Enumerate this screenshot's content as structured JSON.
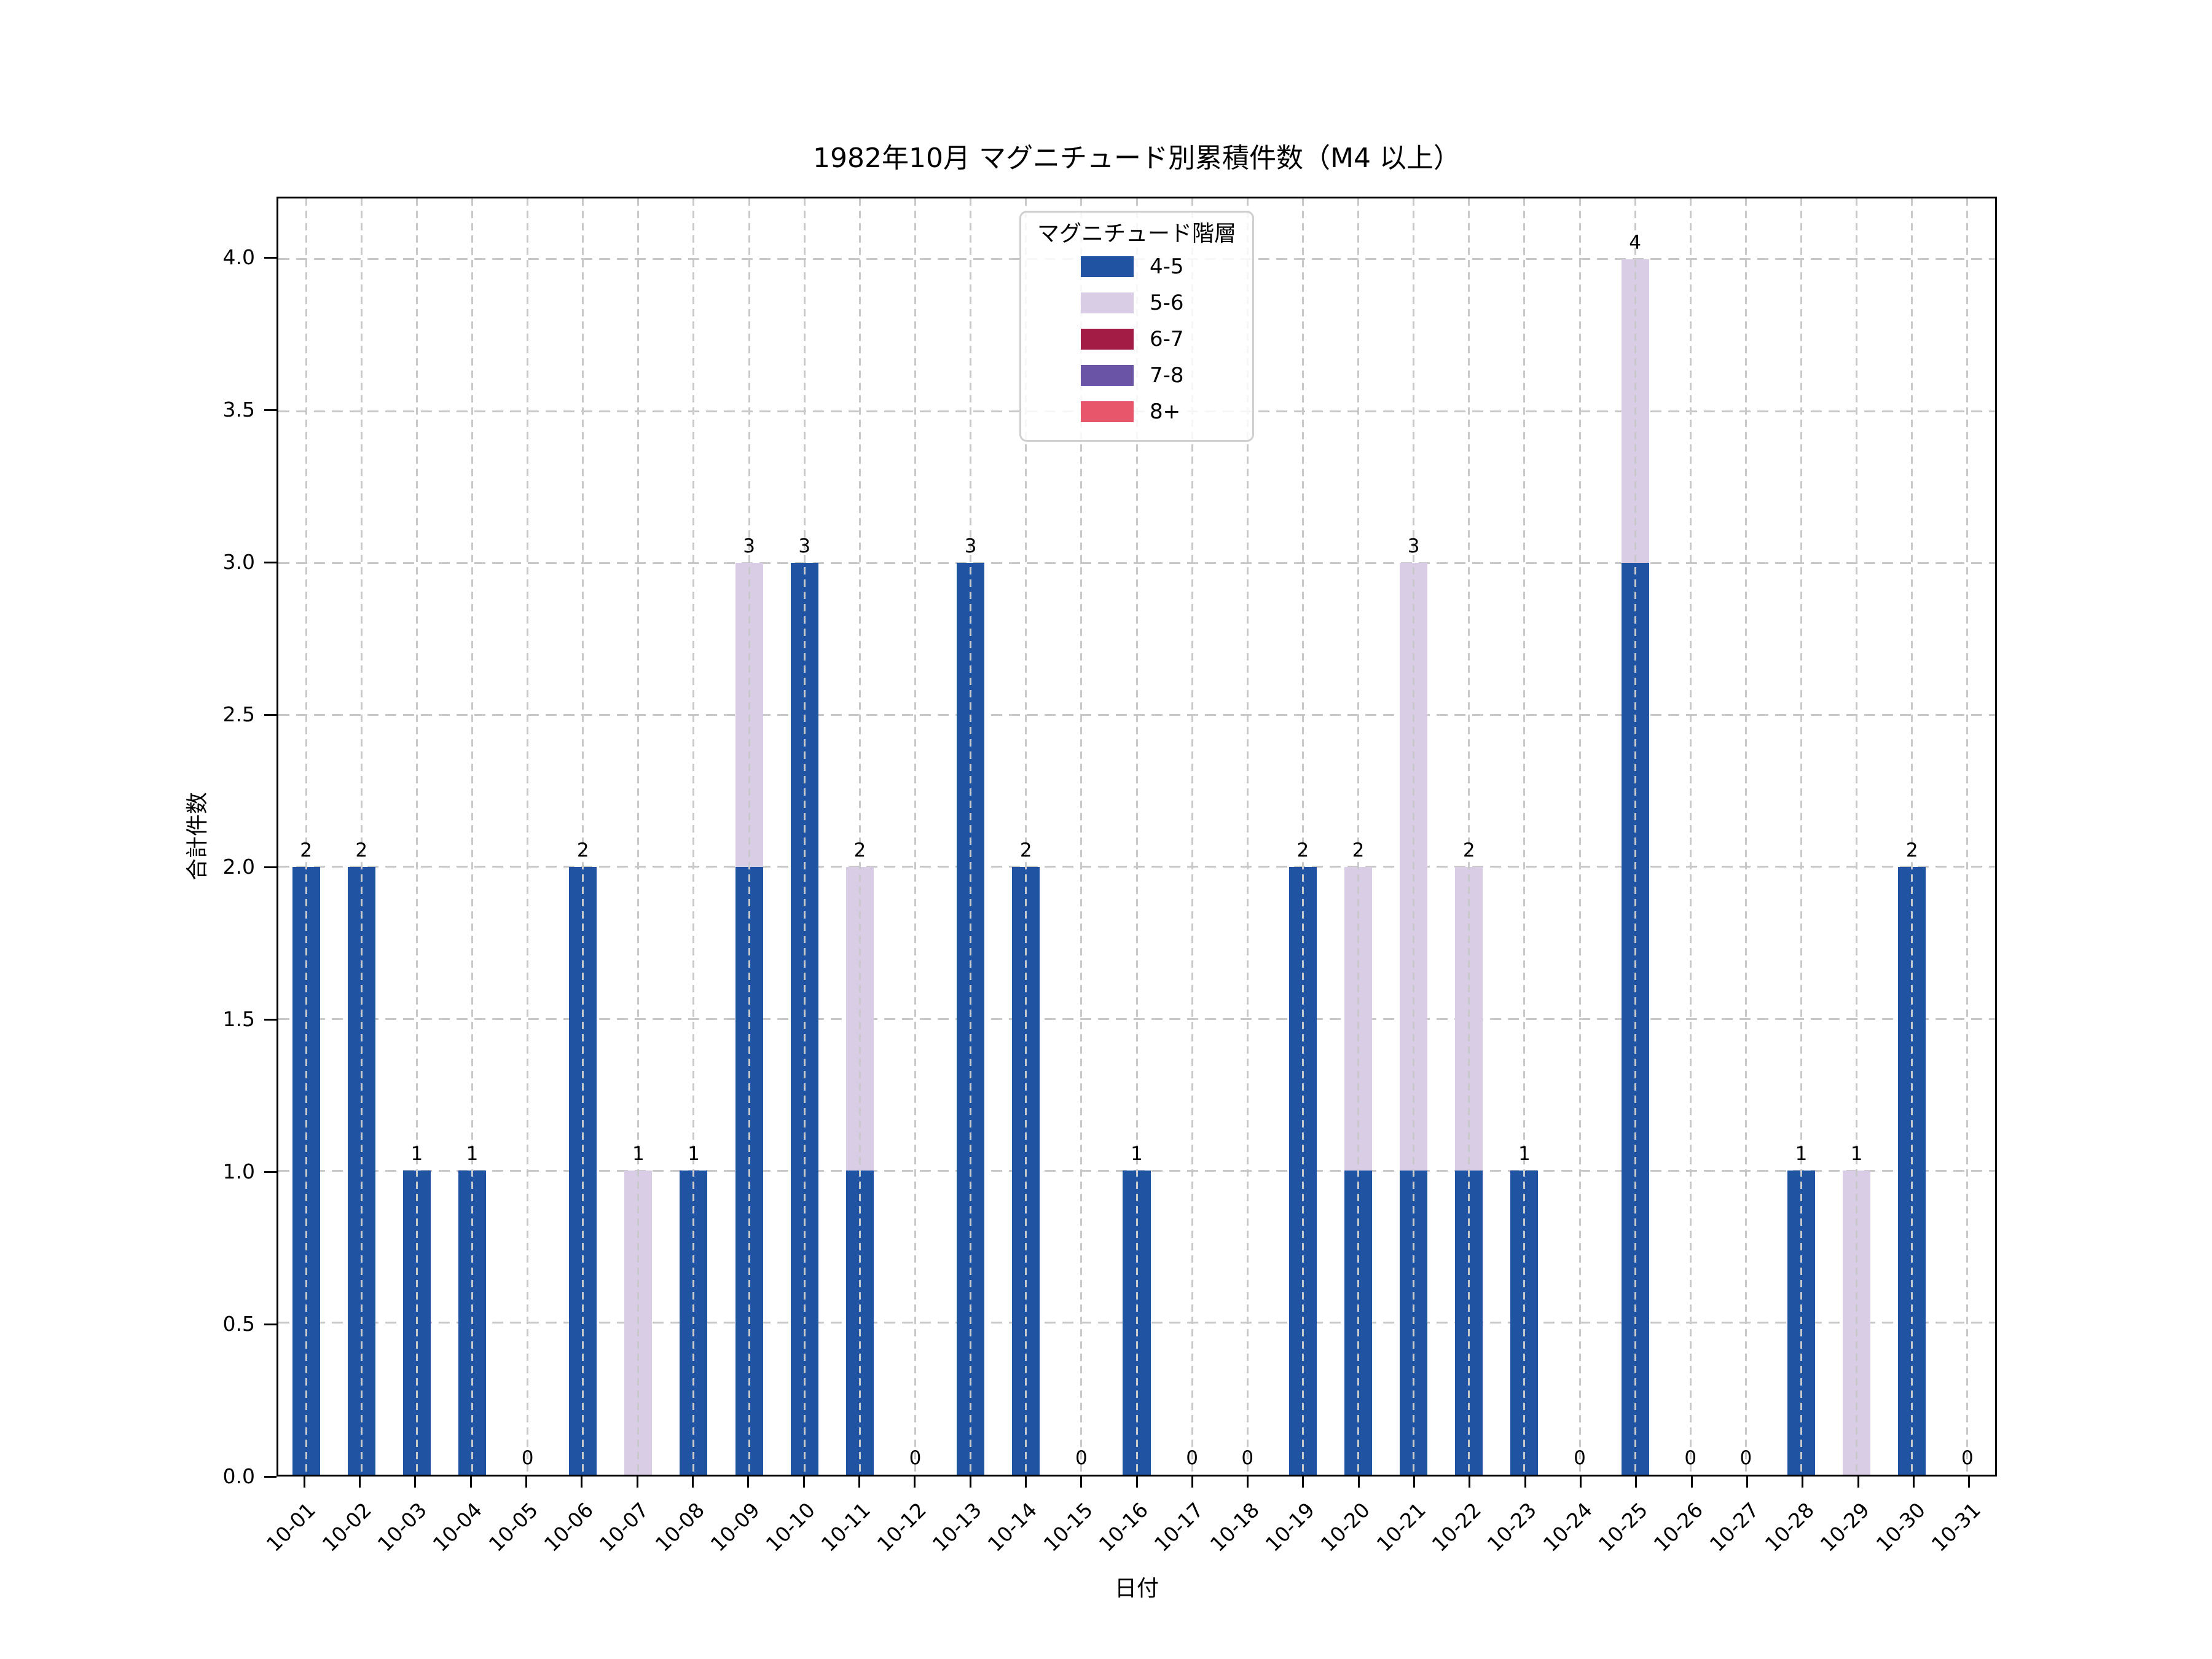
{
  "figure": {
    "title": "1982年10月 マグニチュード別累積件数（M4 以上）"
  },
  "axes": {
    "x_label": "日付",
    "y_label": "合計件数",
    "y_tick_labels": [
      "0.0",
      "0.5",
      "1.0",
      "1.5",
      "2.0",
      "2.5",
      "3.0",
      "3.5",
      "4.0"
    ],
    "x_tick_labels": [
      "10-01",
      "10-02",
      "10-03",
      "10-04",
      "10-05",
      "10-06",
      "10-07",
      "10-08",
      "10-09",
      "10-10",
      "10-11",
      "10-12",
      "10-13",
      "10-14",
      "10-15",
      "10-16",
      "10-17",
      "10-18",
      "10-19",
      "10-20",
      "10-21",
      "10-22",
      "10-23",
      "10-24",
      "10-25",
      "10-26",
      "10-27",
      "10-28",
      "10-29",
      "10-30",
      "10-31"
    ]
  },
  "legend": {
    "title": "マグニチュード階層",
    "entries": [
      {
        "label": "4-5",
        "color": "#2153a3"
      },
      {
        "label": "5-6",
        "color": "#d8cde4"
      },
      {
        "label": "6-7",
        "color": "#a21c45"
      },
      {
        "label": "7-8",
        "color": "#6a54a5"
      },
      {
        "label": "8+",
        "color": "#e8566b"
      }
    ]
  },
  "colors": {
    "background": "#ffffff",
    "grid": "#c8c8c8",
    "axis": "#000000",
    "legend_border": "#cfcfcf"
  },
  "chart_data": {
    "type": "bar",
    "stacked": true,
    "title": "1982年10月 マグニチュード別累積件数（M4 以上）",
    "xlabel": "日付",
    "ylabel": "合計件数",
    "legend_title": "マグニチュード階層",
    "legend_position": "upper center",
    "grid": true,
    "ylim": [
      0,
      4.2
    ],
    "y_ticks": [
      0.0,
      0.5,
      1.0,
      1.5,
      2.0,
      2.5,
      3.0,
      3.5,
      4.0
    ],
    "categories": [
      "10-01",
      "10-02",
      "10-03",
      "10-04",
      "10-05",
      "10-06",
      "10-07",
      "10-08",
      "10-09",
      "10-10",
      "10-11",
      "10-12",
      "10-13",
      "10-14",
      "10-15",
      "10-16",
      "10-17",
      "10-18",
      "10-19",
      "10-20",
      "10-21",
      "10-22",
      "10-23",
      "10-24",
      "10-25",
      "10-26",
      "10-27",
      "10-28",
      "10-29",
      "10-30",
      "10-31"
    ],
    "series": [
      {
        "name": "4-5",
        "color": "#2153a3",
        "values": [
          2,
          2,
          1,
          1,
          0,
          2,
          0,
          1,
          2,
          3,
          1,
          0,
          3,
          2,
          0,
          1,
          0,
          0,
          2,
          1,
          1,
          1,
          1,
          0,
          3,
          0,
          0,
          1,
          0,
          2,
          0
        ]
      },
      {
        "name": "5-6",
        "color": "#d8cde4",
        "values": [
          0,
          0,
          0,
          0,
          0,
          0,
          1,
          0,
          1,
          0,
          1,
          0,
          0,
          0,
          0,
          0,
          0,
          0,
          0,
          1,
          2,
          1,
          0,
          0,
          1,
          0,
          0,
          0,
          1,
          0,
          0
        ]
      },
      {
        "name": "6-7",
        "color": "#a21c45",
        "values": [
          0,
          0,
          0,
          0,
          0,
          0,
          0,
          0,
          0,
          0,
          0,
          0,
          0,
          0,
          0,
          0,
          0,
          0,
          0,
          0,
          0,
          0,
          0,
          0,
          0,
          0,
          0,
          0,
          0,
          0,
          0
        ]
      },
      {
        "name": "7-8",
        "color": "#6a54a5",
        "values": [
          0,
          0,
          0,
          0,
          0,
          0,
          0,
          0,
          0,
          0,
          0,
          0,
          0,
          0,
          0,
          0,
          0,
          0,
          0,
          0,
          0,
          0,
          0,
          0,
          0,
          0,
          0,
          0,
          0,
          0,
          0
        ]
      },
      {
        "name": "8+",
        "color": "#e8566b",
        "values": [
          0,
          0,
          0,
          0,
          0,
          0,
          0,
          0,
          0,
          0,
          0,
          0,
          0,
          0,
          0,
          0,
          0,
          0,
          0,
          0,
          0,
          0,
          0,
          0,
          0,
          0,
          0,
          0,
          0,
          0,
          0
        ]
      }
    ],
    "totals": [
      2,
      2,
      1,
      1,
      0,
      2,
      1,
      1,
      3,
      3,
      2,
      0,
      3,
      2,
      0,
      1,
      0,
      0,
      2,
      2,
      3,
      2,
      1,
      0,
      4,
      0,
      0,
      1,
      1,
      2,
      0
    ]
  }
}
